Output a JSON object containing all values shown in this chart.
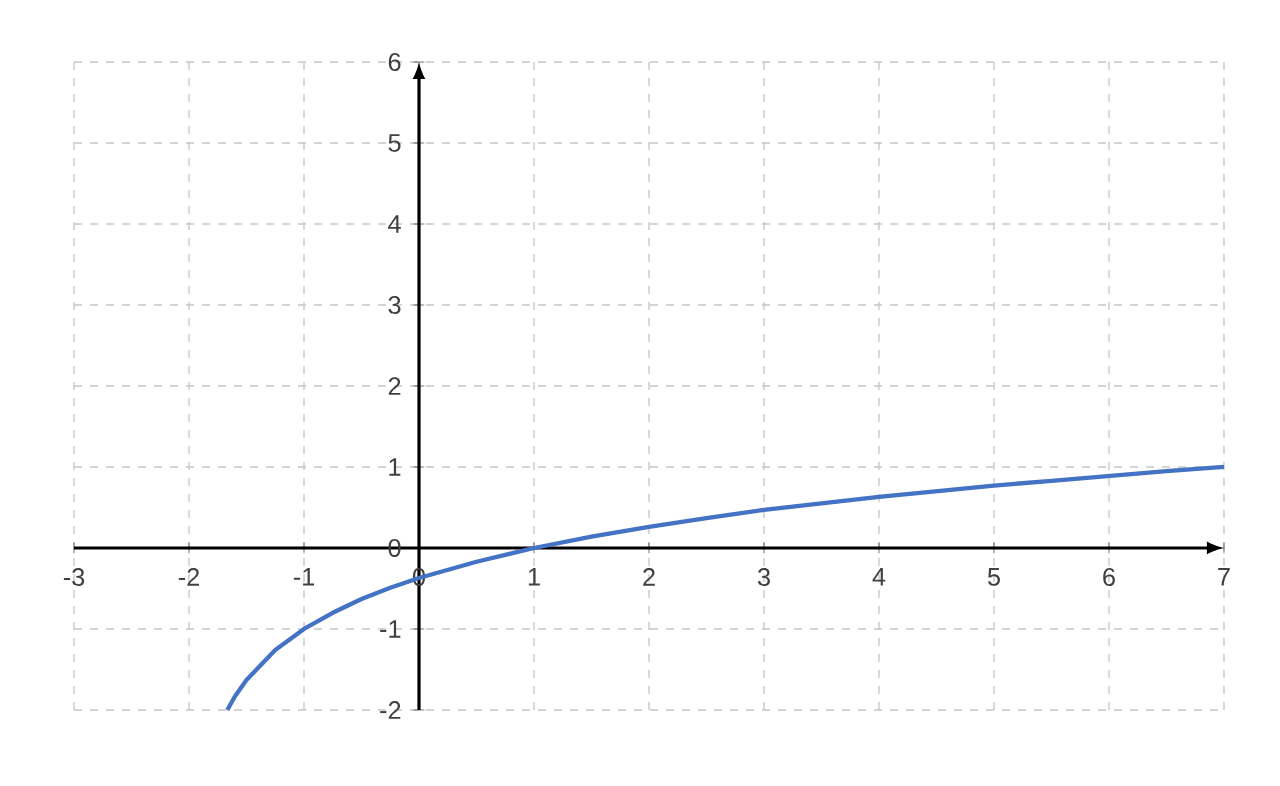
{
  "chart_data": {
    "type": "line",
    "x": [
      -1.667,
      -1.6,
      -1.5,
      -1.25,
      -1,
      -0.75,
      -0.5,
      -0.25,
      0,
      0.5,
      1,
      1.5,
      2,
      2.5,
      3,
      3.5,
      4,
      4.5,
      5,
      5.5,
      6,
      6.5,
      7
    ],
    "series": [
      {
        "color": "#4472c4",
        "values": [
          -2.0,
          -1.83,
          -1.63,
          -1.26,
          -1.0,
          -0.8,
          -0.63,
          -0.49,
          -0.37,
          -0.17,
          0.0,
          0.14,
          0.26,
          0.37,
          0.47,
          0.55,
          0.63,
          0.7,
          0.77,
          0.83,
          0.89,
          0.95,
          1.0
        ]
      }
    ],
    "xlim": [
      -3,
      7
    ],
    "ylim": [
      -2,
      6
    ],
    "xticks": [
      -3,
      -2,
      -1,
      0,
      1,
      2,
      3,
      4,
      5,
      6,
      7
    ],
    "yticks": [
      -2,
      -1,
      0,
      1,
      2,
      3,
      4,
      5,
      6
    ],
    "grid": true,
    "marker": "none",
    "line_style": "solid"
  }
}
